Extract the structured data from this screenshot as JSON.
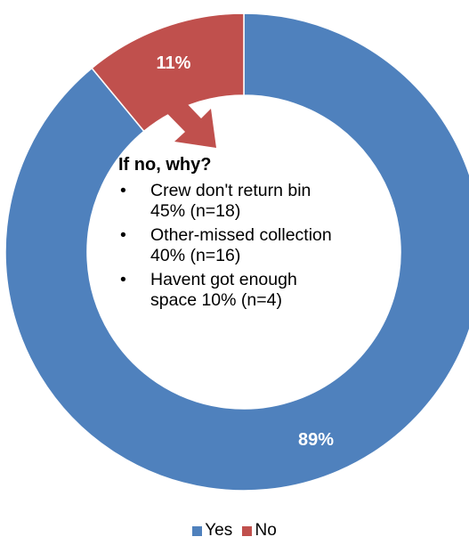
{
  "chart_data": {
    "type": "pie",
    "donut": true,
    "categories": [
      "Yes",
      "No"
    ],
    "values": [
      89,
      11
    ],
    "data_labels": [
      "89%",
      "11%"
    ],
    "colors": [
      "#4f81bd",
      "#c0504d"
    ],
    "legend_position": "bottom",
    "title": ""
  },
  "callout": {
    "title": "If no, why?",
    "reasons": [
      {
        "line1": "Crew don't return bin",
        "line2": "45% (n=18)"
      },
      {
        "line1": "Other-missed collection",
        "line2": "40% (n=16)"
      },
      {
        "line1": "Havent got enough",
        "line2": "space 10% (n=4)"
      }
    ],
    "bullet": "•"
  },
  "legend": [
    {
      "label": "Yes",
      "color": "#4f81bd"
    },
    {
      "label": "No",
      "color": "#c0504d"
    }
  ],
  "arrow_color": "#c0504d"
}
